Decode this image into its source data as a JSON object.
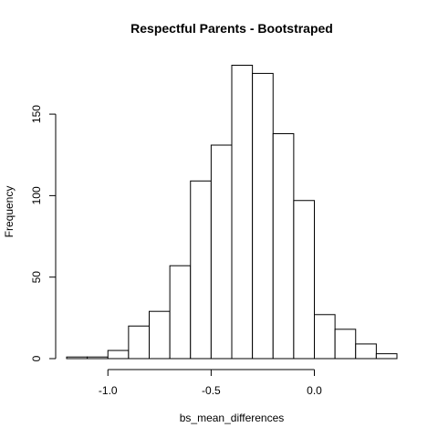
{
  "chart_data": {
    "type": "bar",
    "title": "Respectful Parents - Bootstraped",
    "xlabel": "bs_mean_differences",
    "ylabel": "Frequency",
    "bin_edges": [
      -1.2,
      -1.1,
      -1.0,
      -0.9,
      -0.8,
      -0.7,
      -0.6,
      -0.5,
      -0.4,
      -0.3,
      -0.2,
      -0.1,
      0.0,
      0.1,
      0.2,
      0.3,
      0.4
    ],
    "counts": [
      1,
      1,
      5,
      20,
      29,
      57,
      109,
      131,
      180,
      175,
      138,
      97,
      27,
      18,
      9,
      3
    ],
    "xlim": [
      -1.2,
      0.4
    ],
    "ylim": [
      0,
      180
    ],
    "x_ticks": [
      -1.0,
      -0.5,
      0.0
    ],
    "x_tick_labels": [
      "-1.0",
      "-0.5",
      "0.0"
    ],
    "y_ticks": [
      0,
      50,
      100,
      150
    ],
    "y_tick_labels": [
      "0",
      "50",
      "100",
      "150"
    ],
    "bar_fill": "#ffffff",
    "bar_stroke": "#000000",
    "grid": false,
    "legend": "none"
  }
}
